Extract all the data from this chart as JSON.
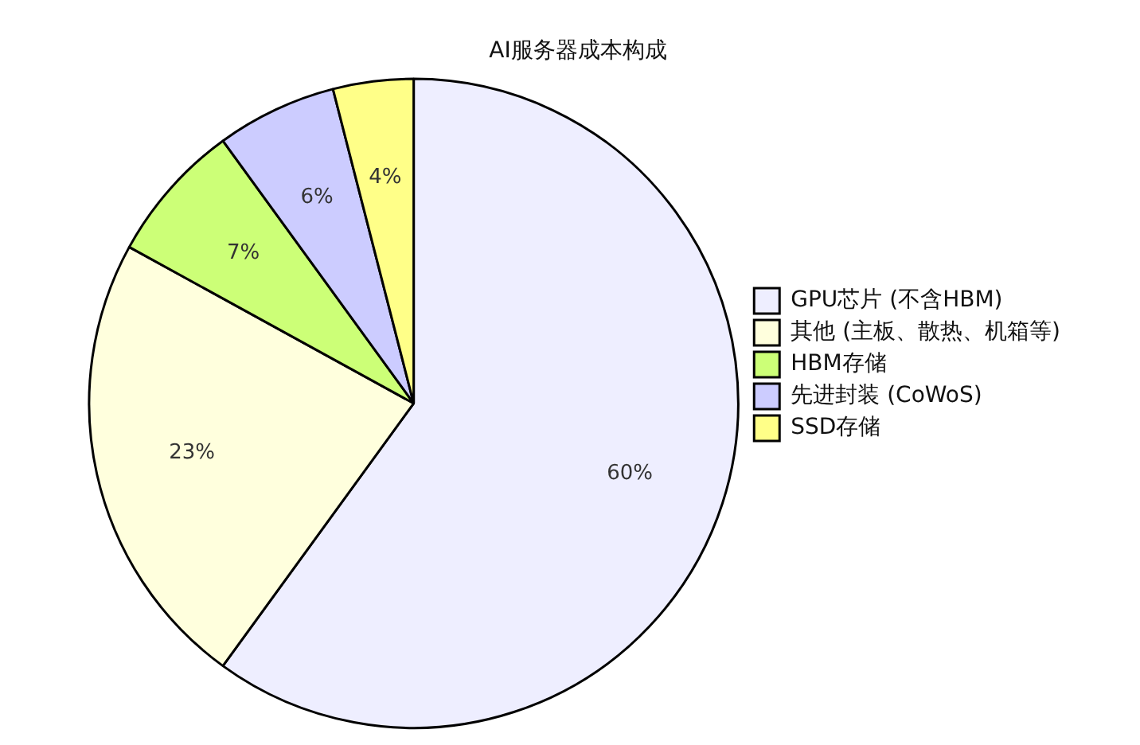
{
  "chart_data": {
    "type": "pie",
    "title": "AI服务器成本构成",
    "categories": [
      "GPU芯片 (不含HBM)",
      "其他 (主板、散热、机箱等)",
      "HBM存储",
      "先进封装 (CoWoS)",
      "SSD存储"
    ],
    "values": [
      60,
      23,
      7,
      6,
      4
    ],
    "colors": [
      "#eeeeff",
      "#ffffdd",
      "#ccff77",
      "#ccccff",
      "#ffff88"
    ],
    "value_labels": [
      "60%",
      "23%",
      "7%",
      "6%",
      "4%"
    ],
    "legend": "right"
  }
}
